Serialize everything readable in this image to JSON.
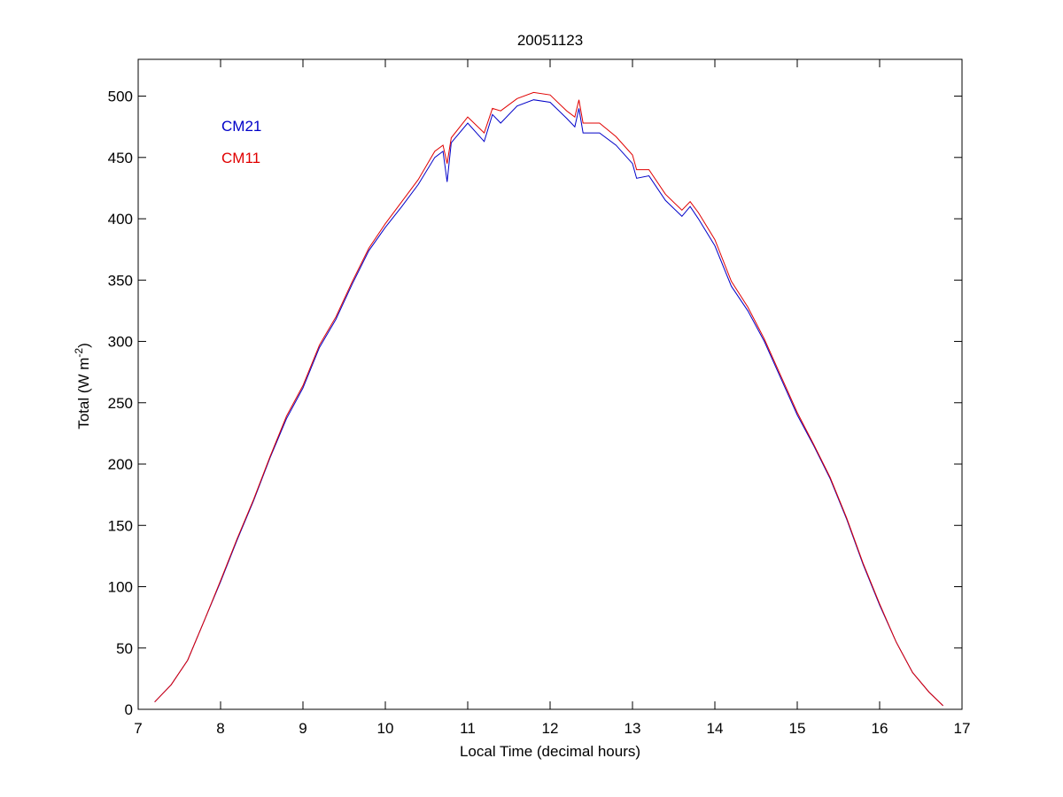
{
  "chart_data": {
    "type": "line",
    "title": "20051123",
    "xlabel": "Local Time (decimal hours)",
    "ylabel": [
      "Total (W m",
      "-2",
      ")"
    ],
    "x": [
      7.2,
      7.4,
      7.6,
      7.8,
      8.0,
      8.2,
      8.4,
      8.6,
      8.8,
      9.0,
      9.2,
      9.4,
      9.6,
      9.8,
      10.0,
      10.2,
      10.4,
      10.6,
      10.7,
      10.75,
      10.8,
      11.0,
      11.2,
      11.3,
      11.4,
      11.6,
      11.8,
      12.0,
      12.2,
      12.3,
      12.35,
      12.4,
      12.6,
      12.8,
      13.0,
      13.05,
      13.2,
      13.4,
      13.6,
      13.7,
      13.8,
      14.0,
      14.2,
      14.4,
      14.6,
      14.8,
      15.0,
      15.2,
      15.4,
      15.6,
      15.8,
      16.0,
      16.2,
      16.4,
      16.6,
      16.77
    ],
    "series": [
      {
        "name": "CM21",
        "color": "#0000c8",
        "values": [
          6,
          20,
          40,
          72,
          104,
          138,
          170,
          205,
          237,
          262,
          295,
          318,
          347,
          374,
          393,
          410,
          428,
          450,
          455,
          430,
          462,
          478,
          463,
          485,
          478,
          492,
          497,
          495,
          482,
          475,
          490,
          470,
          470,
          460,
          445,
          433,
          435,
          415,
          402,
          410,
          400,
          378,
          345,
          325,
          300,
          270,
          240,
          215,
          188,
          155,
          118,
          85,
          55,
          30,
          14,
          3
        ]
      },
      {
        "name": "CM11",
        "color": "#e00000",
        "values": [
          6,
          20,
          40,
          72,
          105,
          139,
          171,
          206,
          239,
          264,
          297,
          320,
          349,
          376,
          396,
          414,
          432,
          455,
          460,
          445,
          466,
          483,
          470,
          490,
          488,
          498,
          503,
          501,
          488,
          483,
          497,
          478,
          478,
          467,
          452,
          440,
          440,
          420,
          407,
          414,
          405,
          383,
          349,
          328,
          302,
          272,
          242,
          216,
          189,
          156,
          119,
          86,
          55,
          30,
          14,
          3
        ]
      }
    ],
    "xlim": [
      7,
      17
    ],
    "xticks": [
      7,
      8,
      9,
      10,
      11,
      12,
      13,
      14,
      15,
      16,
      17
    ],
    "ylim": [
      0,
      530
    ],
    "yticks": [
      0,
      50,
      100,
      150,
      200,
      250,
      300,
      350,
      400,
      450,
      500
    ],
    "legend": "upper left",
    "grid": false
  }
}
